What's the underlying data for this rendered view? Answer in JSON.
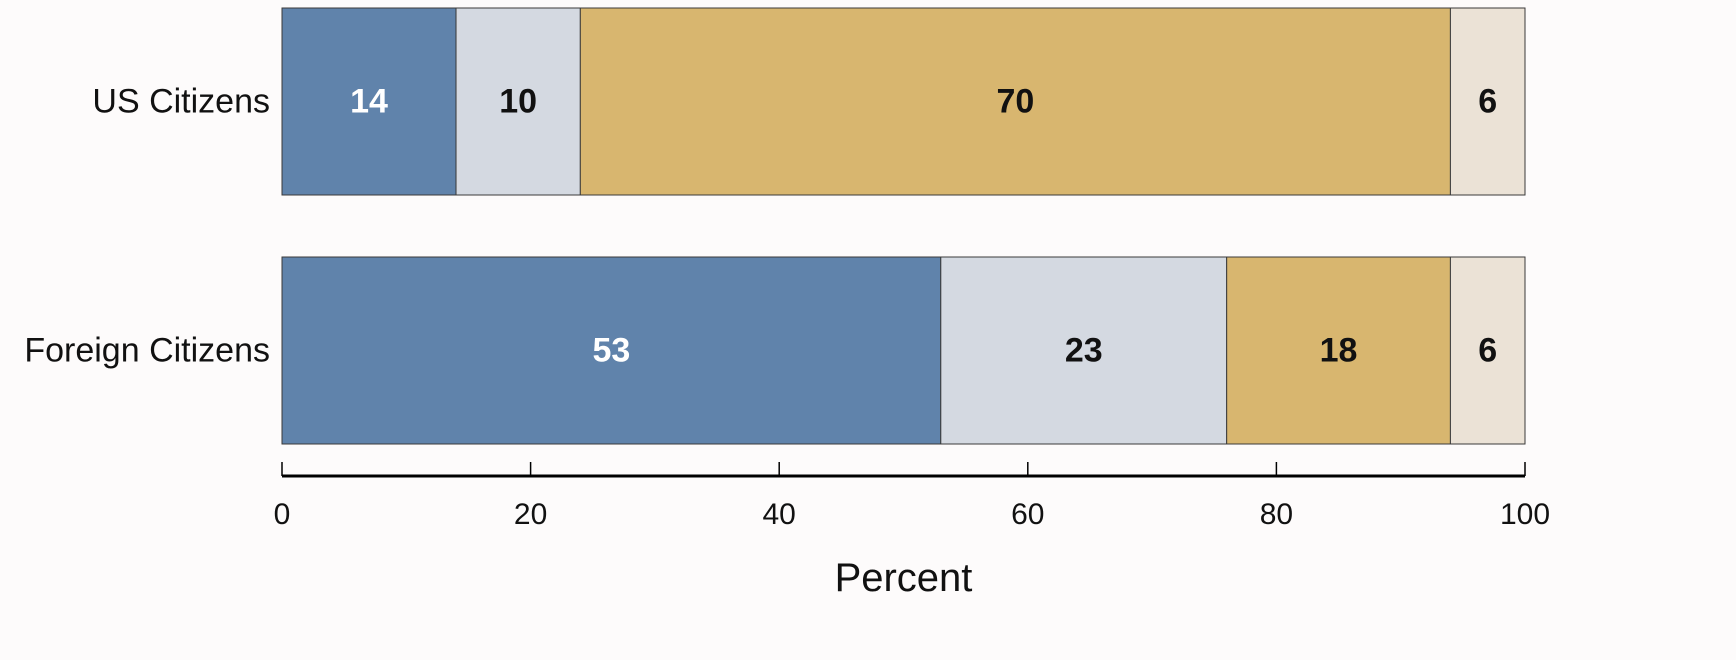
{
  "chart_data": {
    "type": "bar",
    "orientation": "horizontal",
    "stacked": true,
    "categories": [
      "US Citizens",
      "Foreign Citizens"
    ],
    "series": [
      {
        "values": [
          14,
          53
        ],
        "color": "#6083ab",
        "label_color": "#ffffff"
      },
      {
        "values": [
          10,
          23
        ],
        "color": "#d4d9e1",
        "label_color": "#111111"
      },
      {
        "values": [
          70,
          18
        ],
        "color": "#d8b66f",
        "label_color": "#111111"
      },
      {
        "values": [
          6,
          6
        ],
        "color": "#ebe2d6",
        "label_color": "#111111"
      }
    ],
    "xlabel": "Percent",
    "ylabel": "",
    "xlim": [
      0,
      100
    ],
    "xticks": [
      0,
      20,
      40,
      60,
      80,
      100
    ],
    "xtick_labels": [
      "0",
      "20",
      "40",
      "60",
      "80",
      "100"
    ],
    "grid": false,
    "legend": "none"
  }
}
